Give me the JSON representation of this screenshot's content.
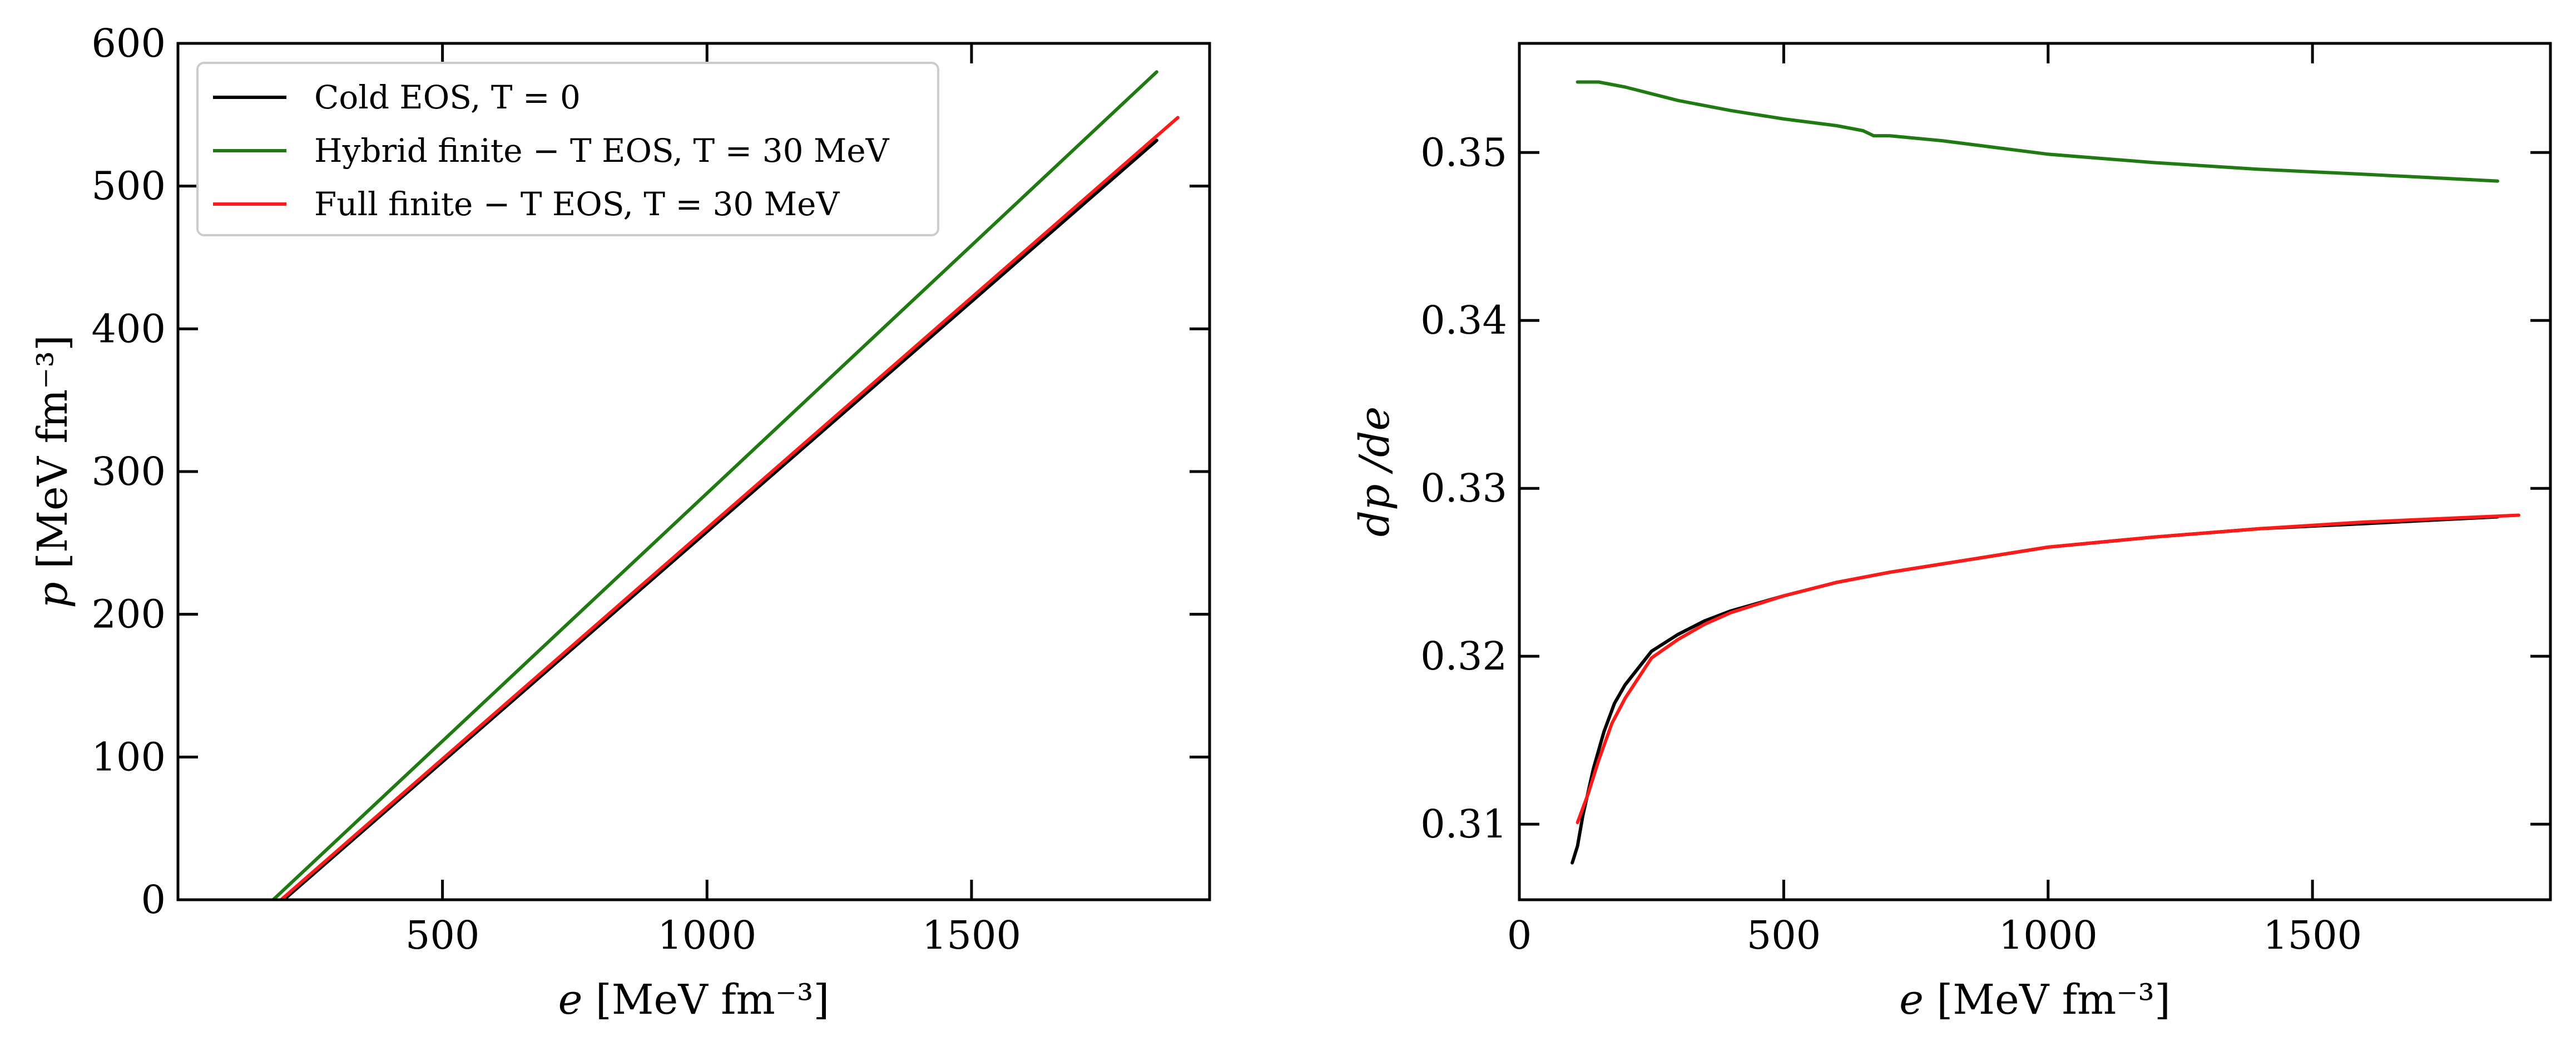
{
  "chart_data": [
    {
      "type": "line",
      "title": "",
      "xlabel": "e [MeV fm⁻³]",
      "ylabel": "p [MeV fm⁻³]",
      "xlim": [
        0,
        1950
      ],
      "ylim": [
        0,
        600
      ],
      "xticks": [
        500,
        1000,
        1500
      ],
      "yticks": [
        0,
        100,
        200,
        300,
        400,
        500,
        600
      ],
      "legend": {
        "placement": "top-left",
        "entries": [
          {
            "label": "Cold EOS, T = 0",
            "color": "#000000"
          },
          {
            "label": "Hybrid finite − T EOS, T = 30 MeV",
            "color": "#1f7a12"
          },
          {
            "label": "Full finite − T EOS, T = 30 MeV",
            "color": "#ff1a1a"
          }
        ]
      },
      "series": [
        {
          "name": "Cold EOS, T = 0",
          "color": "#000000",
          "x": [
            200,
            1850
          ],
          "y": [
            0,
            532
          ]
        },
        {
          "name": "Hybrid finite − T EOS, T = 30 MeV",
          "color": "#1f7a12",
          "x": [
            180,
            1850
          ],
          "y": [
            0,
            580
          ]
        },
        {
          "name": "Full finite − T EOS, T = 30 MeV",
          "color": "#ff1a1a",
          "x": [
            195,
            1890
          ],
          "y": [
            0,
            548
          ]
        }
      ]
    },
    {
      "type": "line",
      "title": "",
      "xlabel": "e [MeV fm⁻³]",
      "ylabel": "dp /de",
      "xlim": [
        0,
        1950
      ],
      "ylim": [
        0.3055,
        0.3565
      ],
      "xticks": [
        0,
        500,
        1000,
        1500
      ],
      "yticks": [
        0.31,
        0.32,
        0.33,
        0.34,
        0.35
      ],
      "series": [
        {
          "name": "Cold EOS, T = 0",
          "color": "#000000",
          "x": [
            100,
            110,
            120,
            140,
            160,
            180,
            200,
            250,
            300,
            350,
            400,
            500,
            600,
            700,
            800,
            1000,
            1200,
            1400,
            1600,
            1850
          ],
          "y": [
            0.3077,
            0.3087,
            0.3105,
            0.3133,
            0.3155,
            0.3172,
            0.3183,
            0.3203,
            0.3213,
            0.3221,
            0.3227,
            0.3236,
            0.3244,
            0.325,
            0.3255,
            0.3265,
            0.3271,
            0.3276,
            0.3279,
            0.3283
          ]
        },
        {
          "name": "Hybrid finite − T EOS, T = 30 MeV",
          "color": "#1f7a12",
          "x": [
            110,
            150,
            200,
            300,
            400,
            500,
            600,
            650,
            670,
            700,
            800,
            1000,
            1200,
            1400,
            1600,
            1850
          ],
          "y": [
            0.3542,
            0.3542,
            0.3539,
            0.3531,
            0.3525,
            0.352,
            0.3516,
            0.3513,
            0.351,
            0.351,
            0.3507,
            0.3499,
            0.3494,
            0.349,
            0.3487,
            0.3483
          ]
        },
        {
          "name": "Full finite − T EOS, T = 30 MeV",
          "color": "#ff1a1a",
          "x": [
            110,
            130,
            150,
            175,
            200,
            250,
            300,
            350,
            400,
            500,
            600,
            700,
            800,
            1000,
            1200,
            1400,
            1600,
            1890
          ],
          "y": [
            0.3101,
            0.3118,
            0.3138,
            0.316,
            0.3175,
            0.3199,
            0.321,
            0.3219,
            0.3226,
            0.3236,
            0.3244,
            0.325,
            0.3255,
            0.3265,
            0.3271,
            0.3276,
            0.328,
            0.3284
          ]
        }
      ]
    }
  ]
}
